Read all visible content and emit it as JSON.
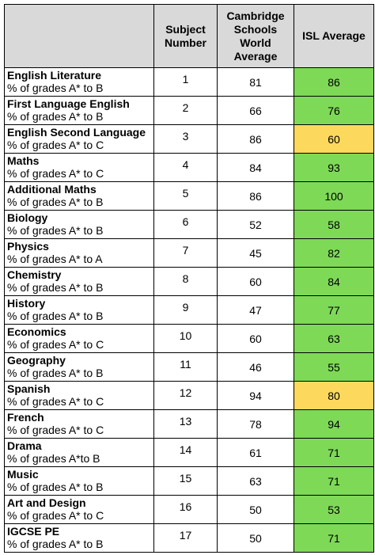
{
  "colors": {
    "header_bg": "#d9d9d9",
    "above": "#7ed957",
    "below": "#fcd95c"
  },
  "headers": {
    "subject_number": "Subject Number",
    "world_average": "Cambridge Schools World Average",
    "isl_average": "ISL Average"
  },
  "rows": [
    {
      "name": "English Literature",
      "grades": "% of grades A* to B",
      "number": "1",
      "world": "81",
      "isl": "86",
      "status": "above"
    },
    {
      "name": "First Language English",
      "grades": "% of grades A* to B",
      "number": "2",
      "world": "66",
      "isl": "76",
      "status": "above"
    },
    {
      "name": "English Second Language",
      "grades": "% of grades A* to C",
      "number": "3",
      "world": "86",
      "isl": "60",
      "status": "below"
    },
    {
      "name": "Maths",
      "grades": "% of grades A* to C",
      "number": "4",
      "world": "84",
      "isl": "93",
      "status": "above"
    },
    {
      "name": "Additional Maths",
      "grades": "% of grades A* to B",
      "number": "5",
      "world": "86",
      "isl": "100",
      "status": "above"
    },
    {
      "name": "Biology",
      "grades": "% of grades A* to B",
      "number": "6",
      "world": "52",
      "isl": "58",
      "status": "above"
    },
    {
      "name": "Physics",
      "grades": "% of grades A* to A",
      "number": "7",
      "world": "45",
      "isl": "82",
      "status": "above"
    },
    {
      "name": "Chemistry",
      "grades": "% of grades A* to B",
      "number": "8",
      "world": "60",
      "isl": "84",
      "status": "above"
    },
    {
      "name": "History",
      "grades": "% of grades A* to B",
      "number": "9",
      "world": "47",
      "isl": "77",
      "status": "above"
    },
    {
      "name": "Economics",
      "grades": "% of grades A* to C",
      "number": "10",
      "world": "60",
      "isl": "63",
      "status": "above"
    },
    {
      "name": "Geography",
      "grades": "% of grades A* to B",
      "number": "11",
      "world": "46",
      "isl": "55",
      "status": "above"
    },
    {
      "name": "Spanish",
      "grades": "% of grades A* to C",
      "number": "12",
      "world": "94",
      "isl": "80",
      "status": "below"
    },
    {
      "name": "French",
      "grades": "% of grades A* to C",
      "number": "13",
      "world": "78",
      "isl": "94",
      "status": "above"
    },
    {
      "name": "Drama",
      "grades": "% of grades A*to B",
      "number": "14",
      "world": "61",
      "isl": "71",
      "status": "above"
    },
    {
      "name": "Music",
      "grades": "% of grades A* to B",
      "number": "15",
      "world": "63",
      "isl": "71",
      "status": "above"
    },
    {
      "name": "Art and Design",
      "grades": "% of grades A* to C",
      "number": "16",
      "world": "50",
      "isl": "53",
      "status": "above"
    },
    {
      "name": "IGCSE PE",
      "grades": "% of grades A* to B",
      "number": "17",
      "world": "50",
      "isl": "71",
      "status": "above"
    }
  ]
}
